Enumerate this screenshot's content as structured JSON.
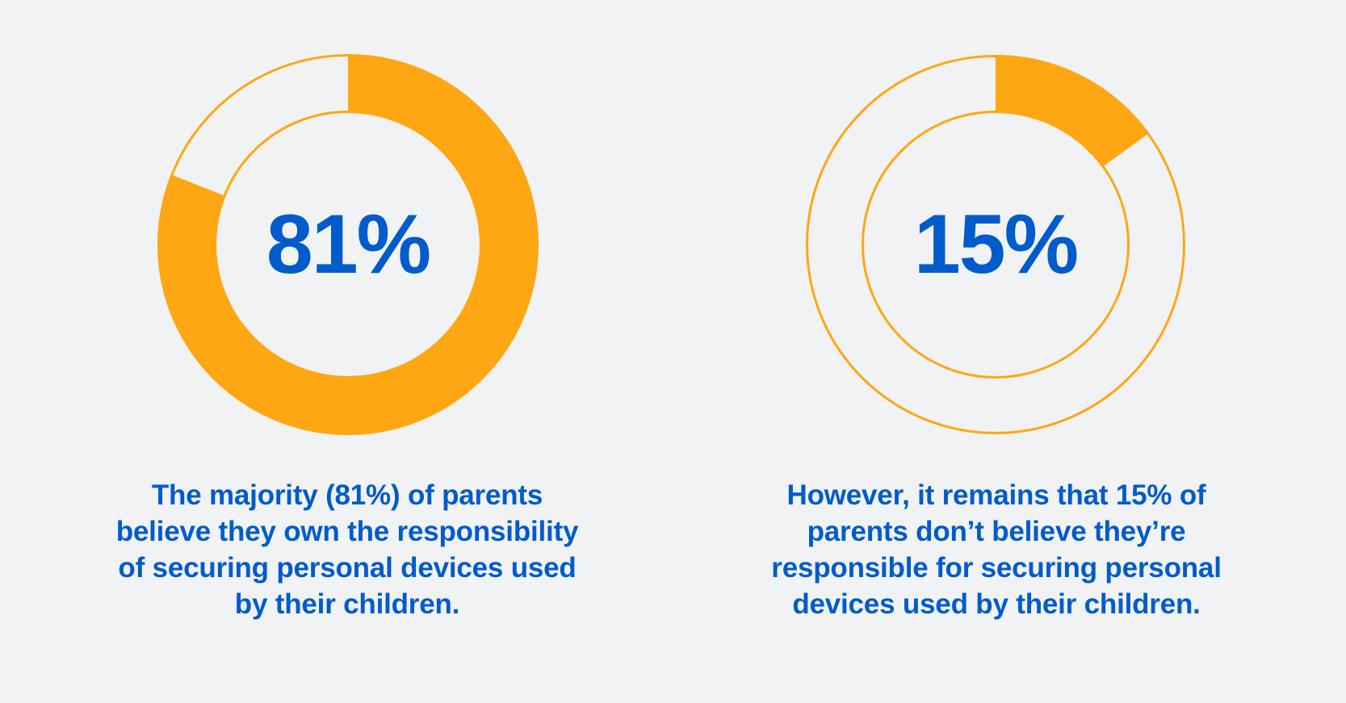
{
  "colors": {
    "background": "#F0F2F4",
    "accent": "#FFA712",
    "text": "#005BCB"
  },
  "chart_data": [
    {
      "type": "pie",
      "variant": "donut",
      "value_percent": 81,
      "label": "81%",
      "caption_lines": [
        "The majority (81%) of parents",
        "believe they own the responsibility",
        "of securing personal devices used",
        "by their children."
      ]
    },
    {
      "type": "pie",
      "variant": "donut",
      "value_percent": 15,
      "label": "15%",
      "caption_lines": [
        "However, it remains that 15% of",
        "parents don’t believe they’re",
        "responsible for securing personal",
        "devices used by their children."
      ]
    }
  ]
}
